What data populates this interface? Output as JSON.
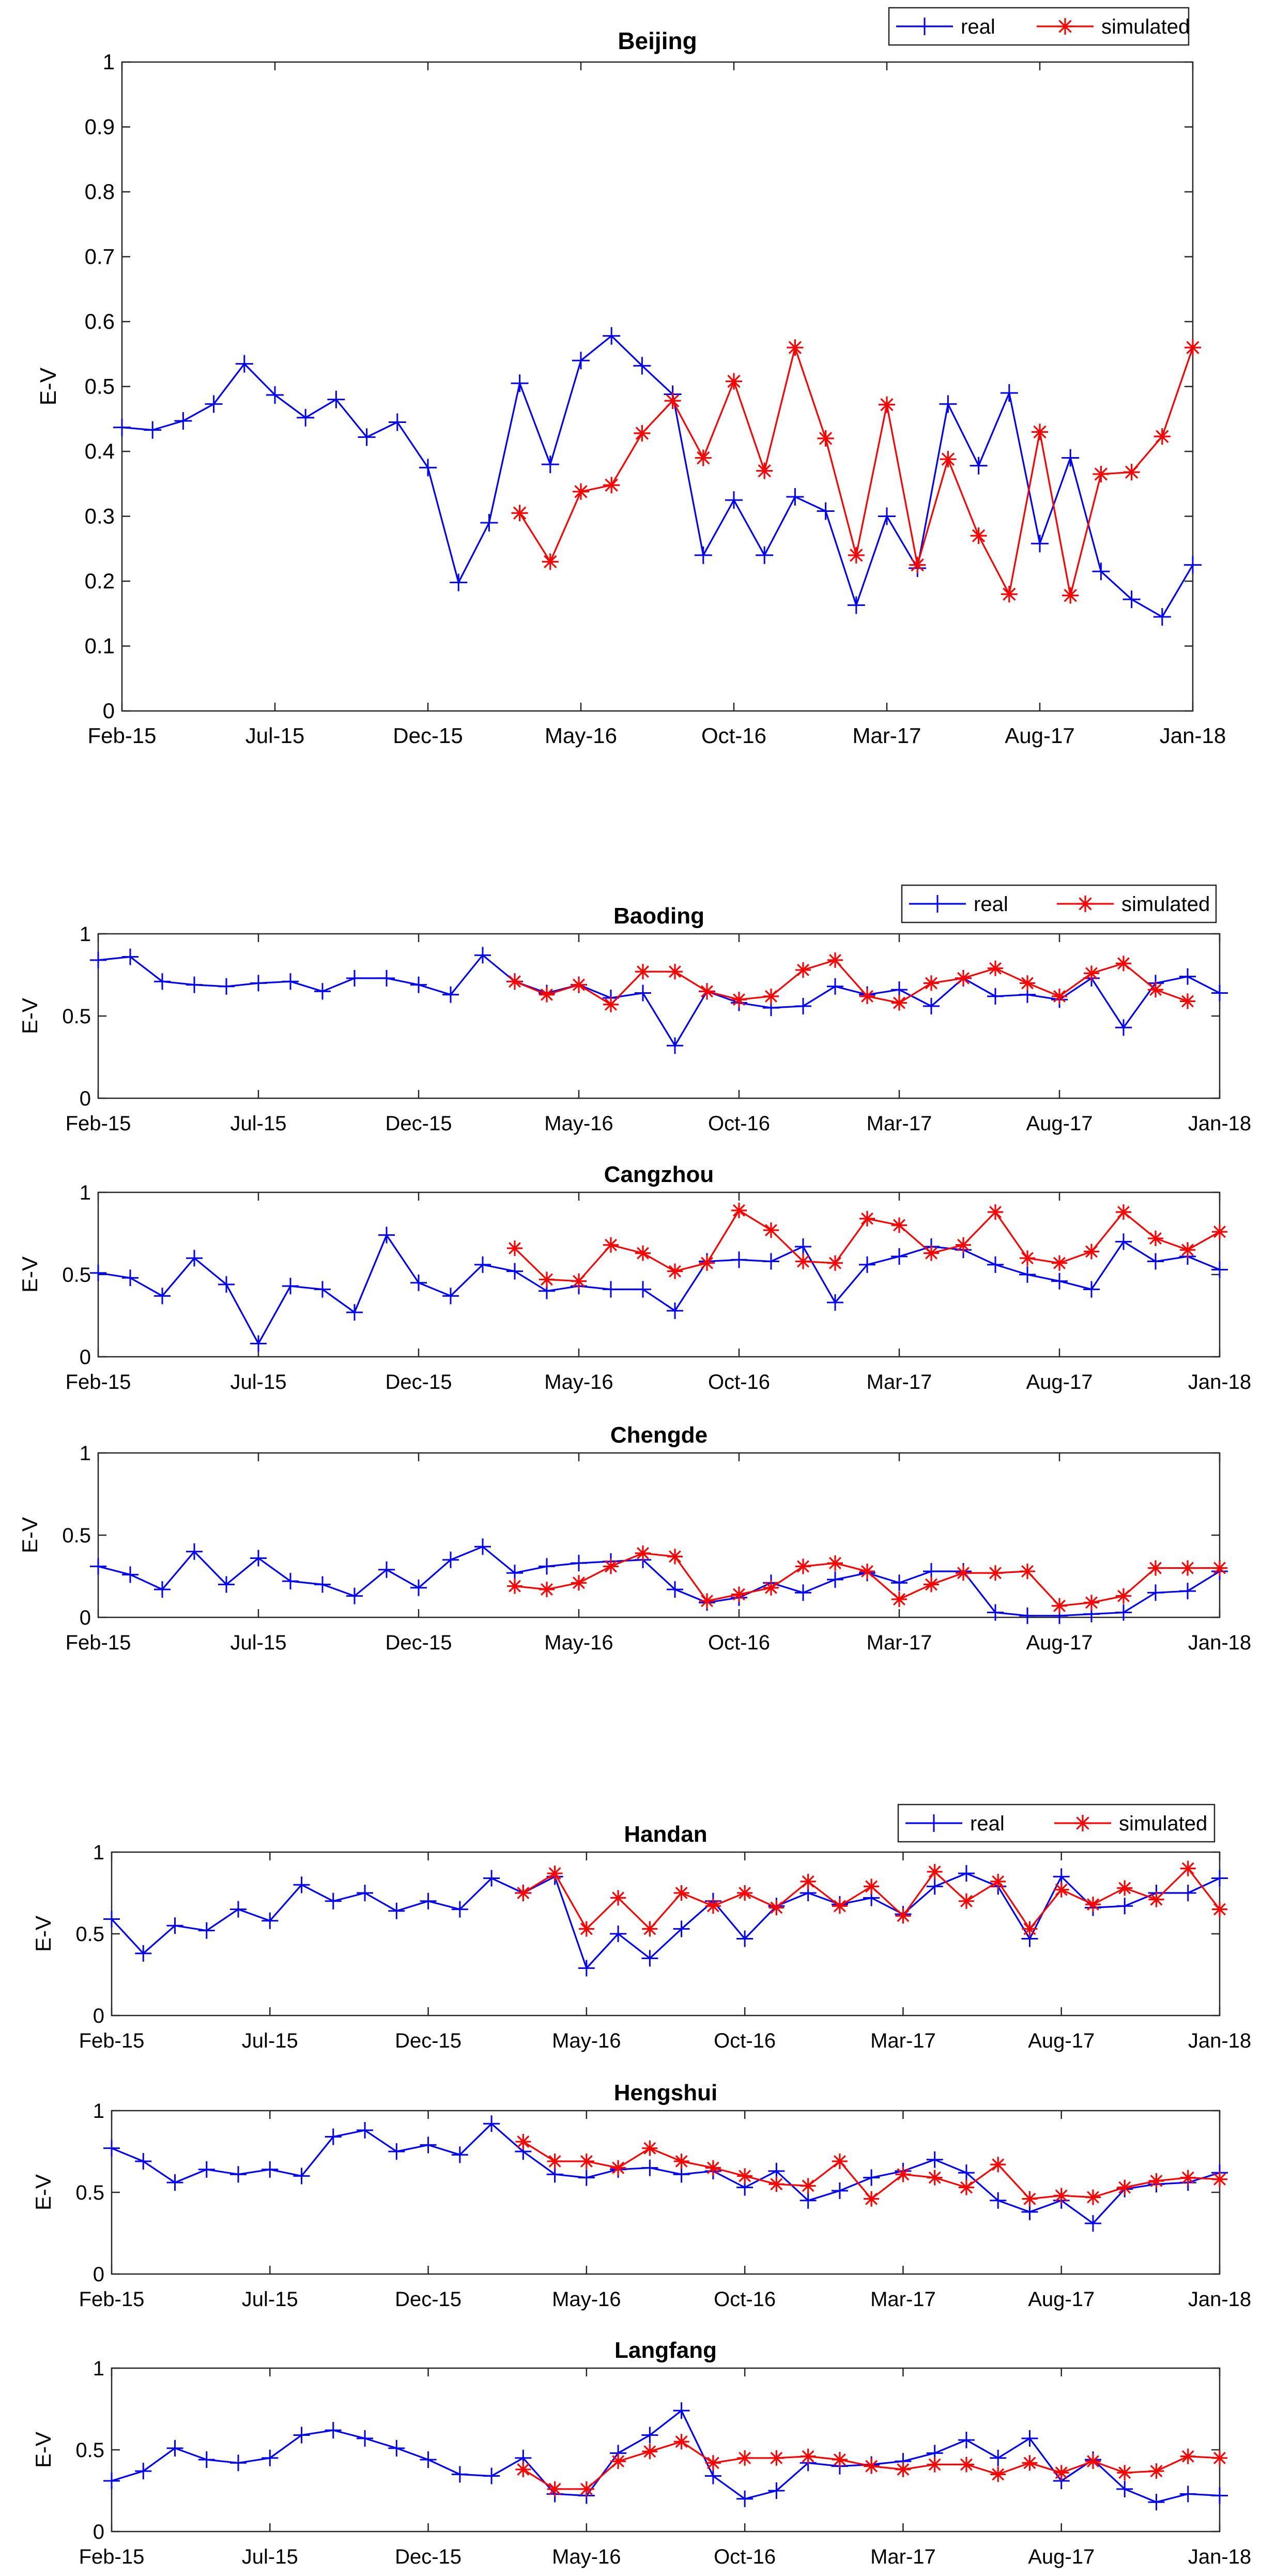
{
  "figure": {
    "x_tick_labels": [
      "Feb-15",
      "Jul-15",
      "Dec-15",
      "May-16",
      "Oct-16",
      "Mar-17",
      "Aug-17",
      "Jan-18"
    ],
    "ylabel": "E-V",
    "legend": [
      "real",
      "simulated"
    ],
    "colors": {
      "real": "#0000ff",
      "simulated": "#ff0000"
    }
  },
  "chart_data": [
    {
      "type": "line",
      "title": "Beijing",
      "xlabel": "",
      "ylabel": "E-V",
      "ylim": [
        0,
        1
      ],
      "y_ticks": [
        "0",
        "0.1",
        "0.2",
        "0.3",
        "0.4",
        "0.5",
        "0.6",
        "0.7",
        "0.8",
        "0.9",
        "1"
      ],
      "legend": [
        "real",
        "simulated"
      ],
      "legend_position": "top-right",
      "series": [
        {
          "name": "real",
          "x_start": 1,
          "values": [
            0.437,
            0.433,
            0.447,
            0.473,
            0.535,
            0.487,
            0.452,
            0.48,
            0.422,
            0.445,
            0.375,
            0.198,
            0.29,
            0.505,
            0.38,
            0.54,
            0.578,
            0.532,
            0.488,
            0.24,
            0.325,
            0.24,
            0.33,
            0.308,
            0.163,
            0.3,
            0.22,
            0.473,
            0.378,
            0.49,
            0.258,
            0.39,
            0.215,
            0.172,
            0.145,
            0.225
          ]
        },
        {
          "name": "simulated",
          "x_start": 14,
          "values": [
            0.305,
            0.23,
            0.338,
            0.348,
            0.428,
            0.478,
            0.39,
            0.508,
            0.37,
            0.56,
            0.42,
            0.24,
            0.472,
            0.225,
            0.388,
            0.27,
            0.18,
            0.43,
            0.178,
            0.365,
            0.368,
            0.423,
            0.56
          ]
        }
      ]
    },
    {
      "type": "line",
      "title": "Baoding",
      "xlabel": "",
      "ylabel": "E-V",
      "ylim": [
        0,
        1
      ],
      "y_ticks": [
        "0",
        "0.5",
        "1"
      ],
      "legend": [
        "real",
        "simulated"
      ],
      "legend_position": "top-right",
      "series": [
        {
          "name": "real",
          "x_start": 1,
          "values": [
            0.84,
            0.86,
            0.71,
            0.69,
            0.68,
            0.7,
            0.71,
            0.65,
            0.73,
            0.73,
            0.69,
            0.63,
            0.87,
            0.71,
            0.64,
            0.69,
            0.61,
            0.64,
            0.32,
            0.65,
            0.58,
            0.55,
            0.56,
            0.68,
            0.63,
            0.66,
            0.56,
            0.73,
            0.62,
            0.63,
            0.6,
            0.73,
            0.43,
            0.7,
            0.74,
            0.64
          ]
        },
        {
          "name": "simulated",
          "x_start": 14,
          "values": [
            0.71,
            0.63,
            0.69,
            0.57,
            0.77,
            0.77,
            0.65,
            0.6,
            0.62,
            0.78,
            0.84,
            0.62,
            0.58,
            0.7,
            0.73,
            0.79,
            0.7,
            0.62,
            0.76,
            0.82,
            0.66,
            0.59
          ]
        }
      ]
    },
    {
      "type": "line",
      "title": "Cangzhou",
      "xlabel": "",
      "ylabel": "E-V",
      "ylim": [
        0,
        1
      ],
      "y_ticks": [
        "0",
        "0.5",
        "1"
      ],
      "legend": [],
      "series": [
        {
          "name": "real",
          "x_start": 1,
          "values": [
            0.51,
            0.48,
            0.37,
            0.6,
            0.44,
            0.08,
            0.43,
            0.41,
            0.27,
            0.74,
            0.45,
            0.37,
            0.56,
            0.52,
            0.4,
            0.43,
            0.41,
            0.41,
            0.28,
            0.58,
            0.59,
            0.58,
            0.67,
            0.33,
            0.56,
            0.61,
            0.67,
            0.65,
            0.56,
            0.5,
            0.46,
            0.41,
            0.7,
            0.58,
            0.61,
            0.53
          ]
        },
        {
          "name": "simulated",
          "x_start": 14,
          "values": [
            0.66,
            0.47,
            0.46,
            0.68,
            0.63,
            0.52,
            0.57,
            0.89,
            0.77,
            0.58,
            0.57,
            0.84,
            0.8,
            0.63,
            0.68,
            0.88,
            0.6,
            0.57,
            0.64,
            0.88,
            0.72,
            0.65,
            0.76
          ]
        }
      ]
    },
    {
      "type": "line",
      "title": "Chengde",
      "xlabel": "",
      "ylabel": "E-V",
      "ylim": [
        0,
        1
      ],
      "y_ticks": [
        "0",
        "0.5",
        "1"
      ],
      "legend": [],
      "series": [
        {
          "name": "real",
          "x_start": 1,
          "values": [
            0.31,
            0.26,
            0.17,
            0.4,
            0.2,
            0.36,
            0.22,
            0.2,
            0.13,
            0.29,
            0.18,
            0.35,
            0.43,
            0.27,
            0.31,
            0.33,
            0.34,
            0.35,
            0.17,
            0.09,
            0.12,
            0.21,
            0.15,
            0.23,
            0.27,
            0.21,
            0.28,
            0.28,
            0.03,
            0.01,
            0.01,
            0.02,
            0.03,
            0.15,
            0.16,
            0.28
          ]
        },
        {
          "name": "simulated",
          "x_start": 14,
          "values": [
            0.19,
            0.17,
            0.21,
            0.31,
            0.39,
            0.37,
            0.1,
            0.14,
            0.18,
            0.31,
            0.33,
            0.28,
            0.11,
            0.2,
            0.27,
            0.27,
            0.28,
            0.07,
            0.09,
            0.13,
            0.3,
            0.3,
            0.3
          ]
        }
      ]
    },
    {
      "type": "line",
      "title": "Handan",
      "xlabel": "",
      "ylabel": "E-V",
      "ylim": [
        0,
        1
      ],
      "y_ticks": [
        "0",
        "0.5",
        "1"
      ],
      "legend": [
        "real",
        "simulated"
      ],
      "legend_position": "top-right",
      "series": [
        {
          "name": "real",
          "x_start": 1,
          "values": [
            0.59,
            0.38,
            0.55,
            0.52,
            0.65,
            0.58,
            0.8,
            0.7,
            0.75,
            0.64,
            0.7,
            0.65,
            0.84,
            0.75,
            0.85,
            0.29,
            0.5,
            0.35,
            0.53,
            0.7,
            0.47,
            0.67,
            0.75,
            0.68,
            0.72,
            0.62,
            0.79,
            0.87,
            0.79,
            0.47,
            0.85,
            0.66,
            0.67,
            0.75,
            0.75,
            0.84
          ]
        },
        {
          "name": "simulated",
          "x_start": 14,
          "values": [
            0.75,
            0.87,
            0.53,
            0.72,
            0.53,
            0.75,
            0.67,
            0.75,
            0.66,
            0.82,
            0.67,
            0.79,
            0.61,
            0.88,
            0.7,
            0.82,
            0.53,
            0.77,
            0.68,
            0.78,
            0.71,
            0.9,
            0.65
          ]
        }
      ]
    },
    {
      "type": "line",
      "title": "Hengshui",
      "xlabel": "",
      "ylabel": "E-V",
      "ylim": [
        0,
        1
      ],
      "y_ticks": [
        "0",
        "0.5",
        "1"
      ],
      "legend": [],
      "series": [
        {
          "name": "real",
          "x_start": 1,
          "values": [
            0.77,
            0.69,
            0.56,
            0.64,
            0.61,
            0.64,
            0.6,
            0.84,
            0.88,
            0.75,
            0.79,
            0.73,
            0.92,
            0.75,
            0.61,
            0.59,
            0.64,
            0.65,
            0.61,
            0.63,
            0.53,
            0.63,
            0.45,
            0.51,
            0.59,
            0.63,
            0.7,
            0.62,
            0.45,
            0.38,
            0.45,
            0.31,
            0.52,
            0.55,
            0.56,
            0.62
          ]
        },
        {
          "name": "simulated",
          "x_start": 14,
          "values": [
            0.81,
            0.69,
            0.69,
            0.65,
            0.77,
            0.69,
            0.65,
            0.6,
            0.55,
            0.54,
            0.69,
            0.46,
            0.61,
            0.59,
            0.53,
            0.67,
            0.46,
            0.48,
            0.47,
            0.53,
            0.57,
            0.59,
            0.58
          ]
        }
      ]
    },
    {
      "type": "line",
      "title": "Langfang",
      "xlabel": "",
      "ylabel": "E-V",
      "ylim": [
        0,
        1
      ],
      "y_ticks": [
        "0",
        "0.5",
        "1"
      ],
      "legend": [],
      "series": [
        {
          "name": "real",
          "x_start": 1,
          "values": [
            0.31,
            0.37,
            0.51,
            0.44,
            0.42,
            0.45,
            0.59,
            0.62,
            0.57,
            0.51,
            0.44,
            0.35,
            0.34,
            0.45,
            0.23,
            0.22,
            0.48,
            0.59,
            0.74,
            0.34,
            0.2,
            0.25,
            0.42,
            0.4,
            0.41,
            0.43,
            0.48,
            0.56,
            0.45,
            0.57,
            0.31,
            0.44,
            0.26,
            0.18,
            0.23,
            0.22
          ]
        },
        {
          "name": "simulated",
          "x_start": 14,
          "values": [
            0.38,
            0.26,
            0.26,
            0.43,
            0.49,
            0.55,
            0.42,
            0.45,
            0.45,
            0.46,
            0.44,
            0.4,
            0.38,
            0.41,
            0.41,
            0.35,
            0.42,
            0.36,
            0.43,
            0.36,
            0.37,
            0.46,
            0.45
          ]
        }
      ]
    }
  ]
}
